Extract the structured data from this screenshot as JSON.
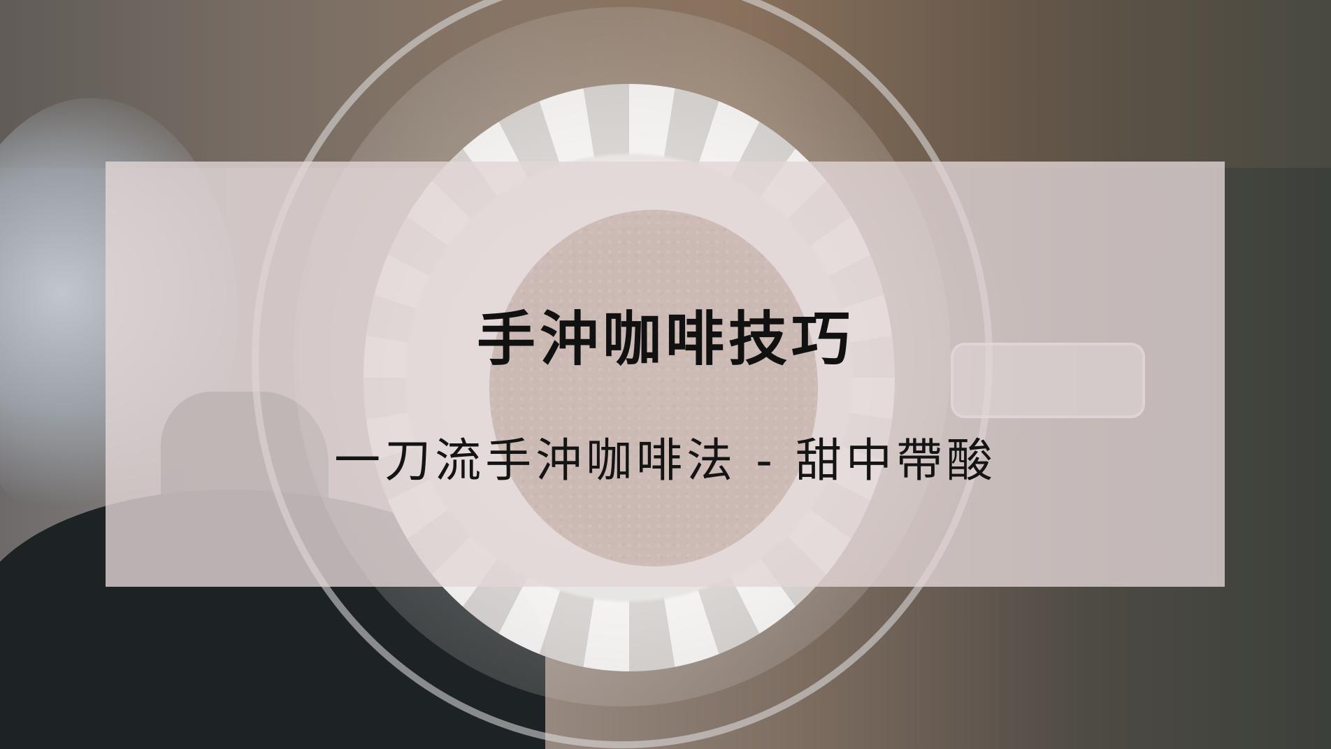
{
  "banner": {
    "title": "手沖咖啡技巧",
    "subtitle": "一刀流手沖咖啡法 - 甜中帶酸"
  },
  "colors": {
    "overlay": "#e2d6d6",
    "text": "#111111",
    "grounds": "#6b4530",
    "filter": "#eceae8"
  }
}
